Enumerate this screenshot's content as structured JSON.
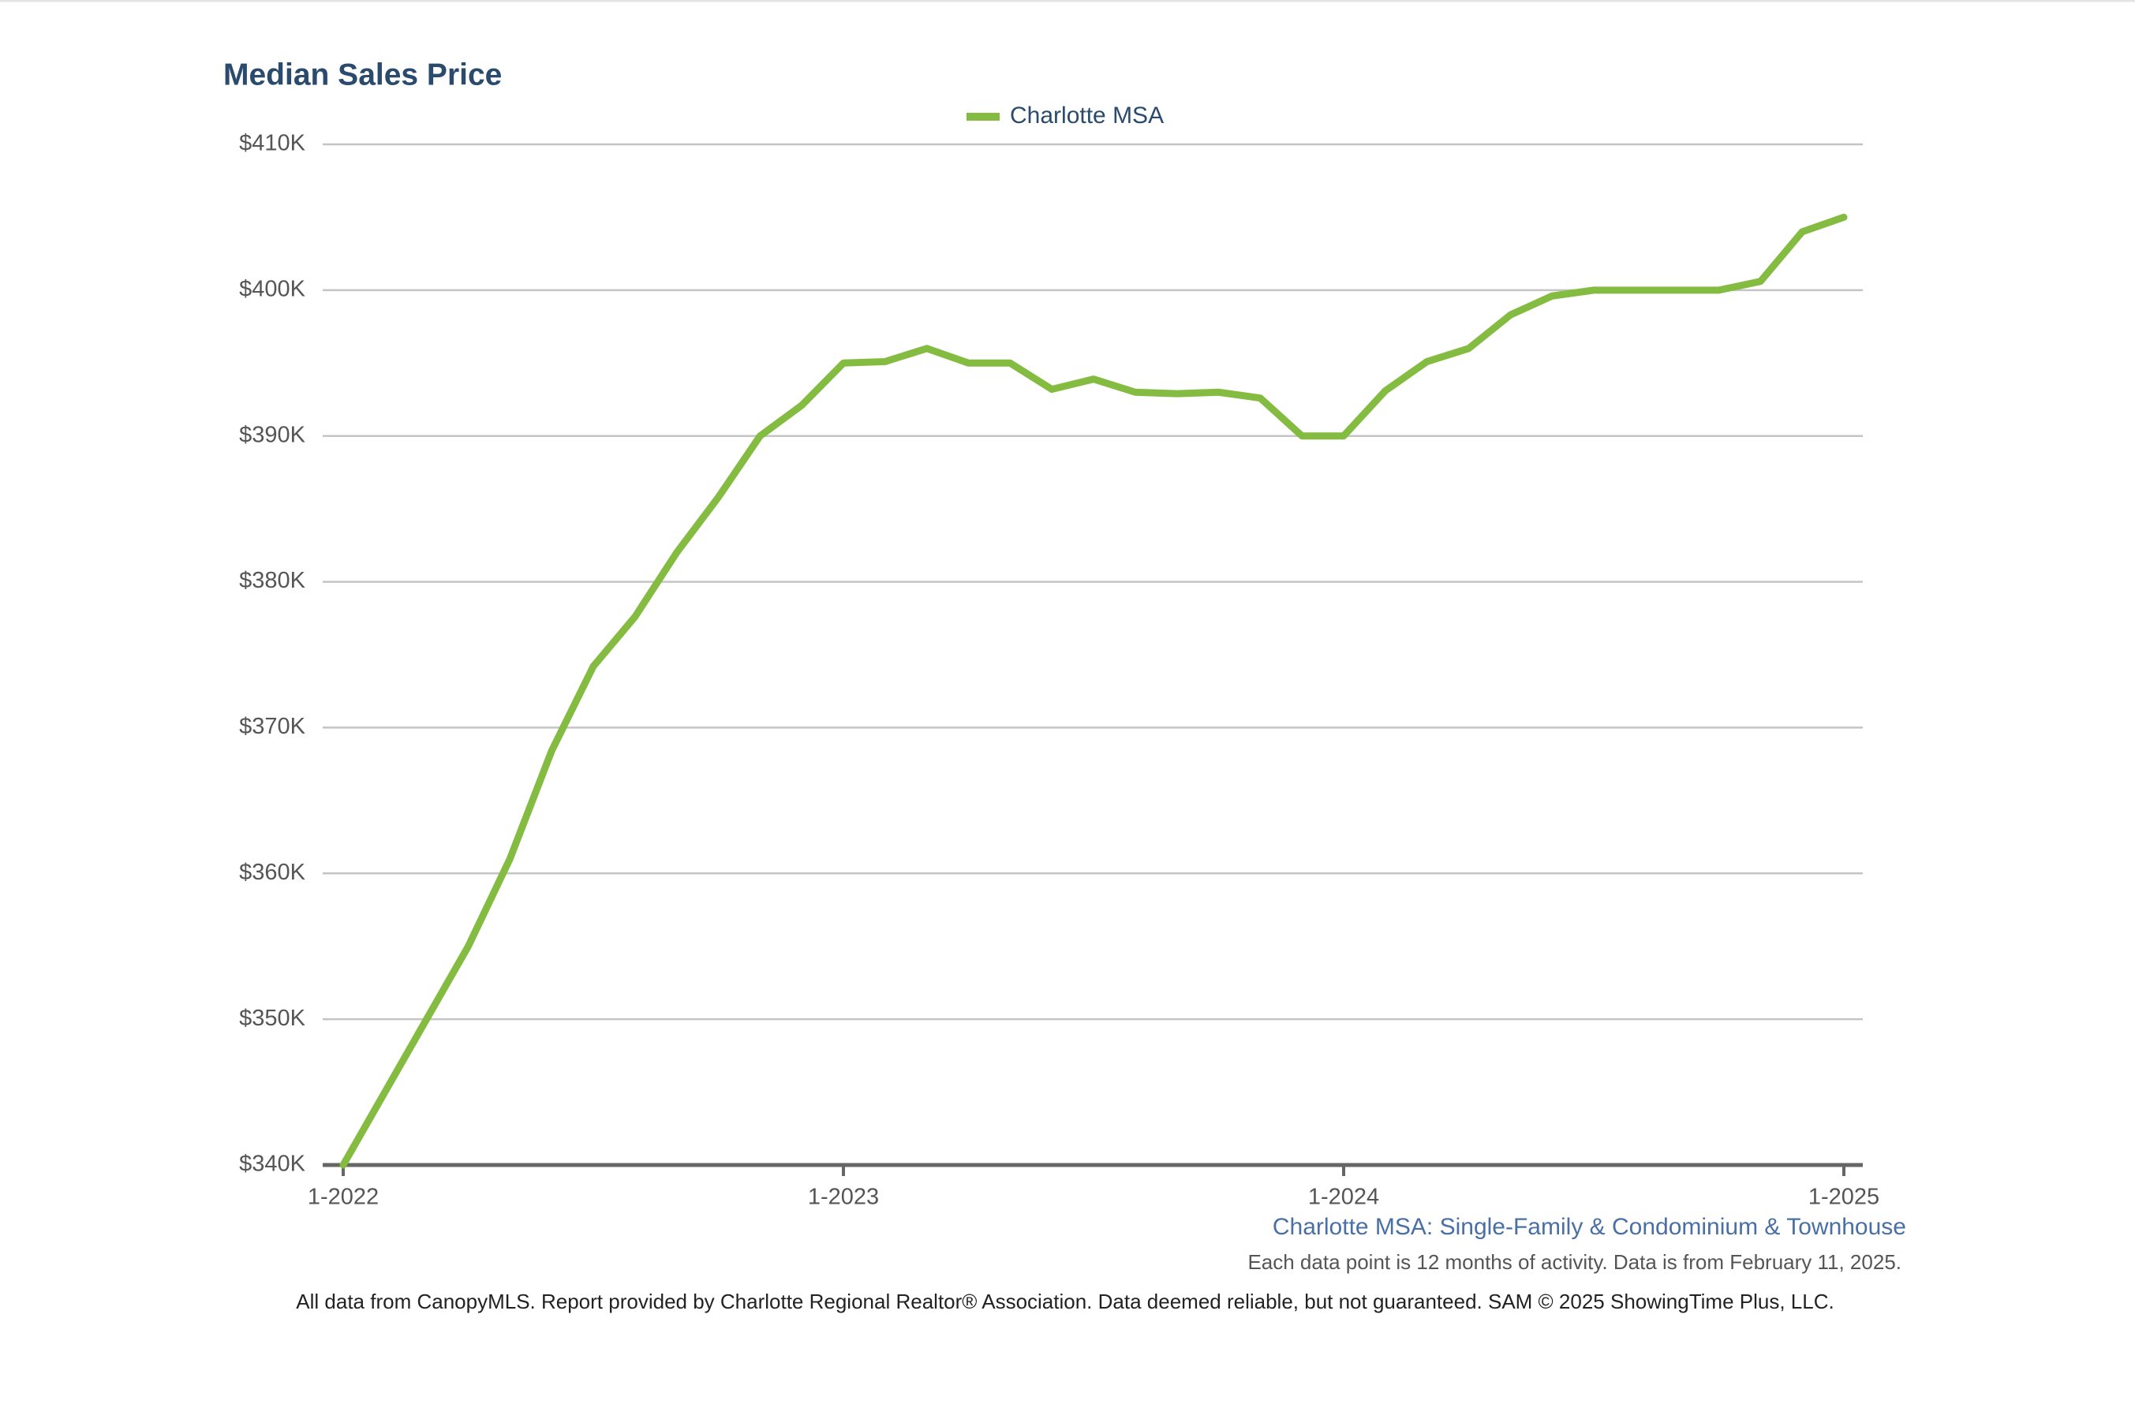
{
  "chart_data": {
    "type": "line",
    "title": "Median Sales Price",
    "subtitle": "Charlotte MSA: Single-Family & Condominium & Townhouse",
    "note": "Each data point is 12 months of activity. Data is from February 11, 2025.",
    "footer": "All data from CanopyMLS. Report provided by Charlotte Regional Realtor® Association. Data deemed reliable, but not guaranteed. SAM © 2025 ShowingTime Plus, LLC.",
    "categories": [
      "1-2022",
      null,
      null,
      null,
      null,
      null,
      null,
      null,
      null,
      null,
      null,
      null,
      "1-2023",
      null,
      null,
      null,
      null,
      null,
      null,
      null,
      null,
      null,
      null,
      null,
      "1-2024",
      null,
      null,
      null,
      null,
      null,
      null,
      null,
      null,
      null,
      null,
      null,
      "1-2025"
    ],
    "series": [
      {
        "name": "Charlotte MSA",
        "color": "#84bc41",
        "values": [
          340000,
          345000,
          350000,
          355000,
          361000,
          368400,
          374200,
          377600,
          382000,
          385800,
          390000,
          392100,
          395000,
          395100,
          396000,
          395000,
          395000,
          393200,
          393900,
          393000,
          392900,
          393000,
          392600,
          390000,
          390000,
          393100,
          395100,
          396000,
          398300,
          399600,
          400000,
          400000,
          400000,
          400000,
          400600,
          404000,
          405000
        ]
      }
    ],
    "ylim": [
      340000,
      410000
    ],
    "yticks": [
      {
        "value": 340000,
        "label": "$340K"
      },
      {
        "value": 350000,
        "label": "$350K"
      },
      {
        "value": 360000,
        "label": "$360K"
      },
      {
        "value": 370000,
        "label": "$370K"
      },
      {
        "value": 380000,
        "label": "$380K"
      },
      {
        "value": 390000,
        "label": "$390K"
      },
      {
        "value": 400000,
        "label": "$400K"
      },
      {
        "value": 410000,
        "label": "$410K"
      }
    ],
    "grid": true,
    "legend": "top"
  }
}
